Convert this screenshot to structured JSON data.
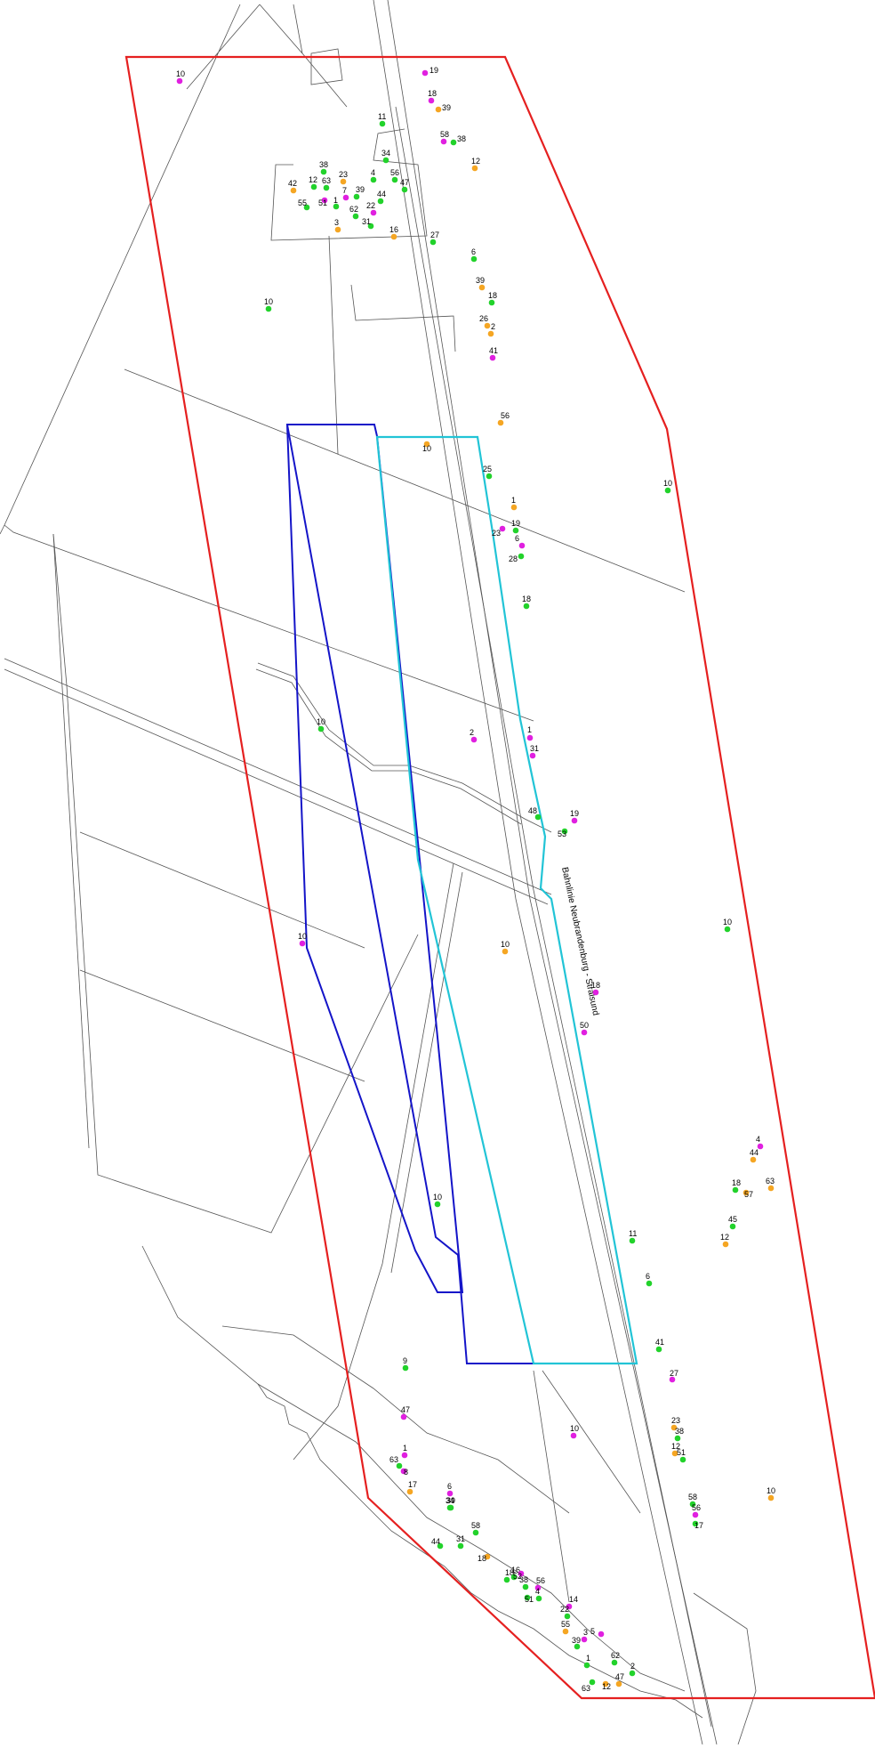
{
  "map": {
    "railway_label": "Bahnlinie Neubrandenburg - Stralsund",
    "colors": {
      "orange": "#f5a623",
      "green": "#22d22b",
      "magenta": "#e020e0",
      "outer_boundary": "#e52020",
      "cyan_area": "#22c4d6",
      "blue_area": "#1414c8",
      "base_lines": "#555555"
    },
    "points": [
      {
        "label": "10",
        "color": "magenta"
      },
      {
        "label": "19",
        "color": "magenta"
      },
      {
        "label": "18",
        "color": "magenta"
      },
      {
        "label": "39",
        "color": "orange"
      },
      {
        "label": "11",
        "color": "green"
      },
      {
        "label": "58",
        "color": "magenta"
      },
      {
        "label": "38",
        "color": "green"
      },
      {
        "label": "34",
        "color": "green"
      },
      {
        "label": "12",
        "color": "orange"
      },
      {
        "label": "38",
        "color": "green"
      },
      {
        "label": "4",
        "color": "green"
      },
      {
        "label": "56",
        "color": "green"
      },
      {
        "label": "42",
        "color": "orange"
      },
      {
        "label": "12",
        "color": "green"
      },
      {
        "label": "63",
        "color": "green"
      },
      {
        "label": "23",
        "color": "orange"
      },
      {
        "label": "47",
        "color": "green"
      },
      {
        "label": "7",
        "color": "magenta"
      },
      {
        "label": "39",
        "color": "green"
      },
      {
        "label": "44",
        "color": "green"
      },
      {
        "label": "55",
        "color": "green"
      },
      {
        "label": "51",
        "color": "magenta"
      },
      {
        "label": "1",
        "color": "green"
      },
      {
        "label": "22",
        "color": "magenta"
      },
      {
        "label": "62",
        "color": "green"
      },
      {
        "label": "31",
        "color": "green"
      },
      {
        "label": "3",
        "color": "orange"
      },
      {
        "label": "16",
        "color": "orange"
      },
      {
        "label": "27",
        "color": "green"
      },
      {
        "label": "6",
        "color": "green"
      },
      {
        "label": "10",
        "color": "green"
      },
      {
        "label": "39",
        "color": "orange"
      },
      {
        "label": "18",
        "color": "green"
      },
      {
        "label": "26",
        "color": "orange"
      },
      {
        "label": "2",
        "color": "orange"
      },
      {
        "label": "41",
        "color": "magenta"
      },
      {
        "label": "56",
        "color": "orange"
      },
      {
        "label": "10",
        "color": "orange"
      },
      {
        "label": "25",
        "color": "green"
      },
      {
        "label": "10",
        "color": "green"
      },
      {
        "label": "1",
        "color": "orange"
      },
      {
        "label": "19",
        "color": "green"
      },
      {
        "label": "23",
        "color": "magenta"
      },
      {
        "label": "6",
        "color": "magenta"
      },
      {
        "label": "28",
        "color": "green"
      },
      {
        "label": "18",
        "color": "green"
      },
      {
        "label": "10",
        "color": "green"
      },
      {
        "label": "2",
        "color": "magenta"
      },
      {
        "label": "1",
        "color": "magenta"
      },
      {
        "label": "31",
        "color": "magenta"
      },
      {
        "label": "48",
        "color": "green"
      },
      {
        "label": "19",
        "color": "magenta"
      },
      {
        "label": "53",
        "color": "green"
      },
      {
        "label": "10",
        "color": "green"
      },
      {
        "label": "10",
        "color": "magenta"
      },
      {
        "label": "10",
        "color": "orange"
      },
      {
        "label": "18",
        "color": "magenta"
      },
      {
        "label": "50",
        "color": "magenta"
      },
      {
        "label": "4",
        "color": "magenta"
      },
      {
        "label": "44",
        "color": "orange"
      },
      {
        "label": "18",
        "color": "green"
      },
      {
        "label": "57",
        "color": "orange"
      },
      {
        "label": "63",
        "color": "orange"
      },
      {
        "label": "45",
        "color": "green"
      },
      {
        "label": "12",
        "color": "orange"
      },
      {
        "label": "10",
        "color": "green"
      },
      {
        "label": "11",
        "color": "green"
      },
      {
        "label": "6",
        "color": "green"
      },
      {
        "label": "41",
        "color": "green"
      },
      {
        "label": "27",
        "color": "magenta"
      },
      {
        "label": "9",
        "color": "green"
      },
      {
        "label": "47",
        "color": "magenta"
      },
      {
        "label": "10",
        "color": "magenta"
      },
      {
        "label": "23",
        "color": "orange"
      },
      {
        "label": "38",
        "color": "green"
      },
      {
        "label": "12",
        "color": "orange"
      },
      {
        "label": "51",
        "color": "green"
      },
      {
        "label": "1",
        "color": "magenta"
      },
      {
        "label": "63",
        "color": "green"
      },
      {
        "label": "8",
        "color": "magenta"
      },
      {
        "label": "17",
        "color": "orange"
      },
      {
        "label": "6",
        "color": "magenta"
      },
      {
        "label": "39",
        "color": "green"
      },
      {
        "label": "58",
        "color": "green"
      },
      {
        "label": "10",
        "color": "orange"
      },
      {
        "label": "56",
        "color": "magenta"
      },
      {
        "label": "17",
        "color": "green"
      },
      {
        "label": "34",
        "color": "green"
      },
      {
        "label": "58",
        "color": "green"
      },
      {
        "label": "44",
        "color": "green"
      },
      {
        "label": "31",
        "color": "green"
      },
      {
        "label": "18",
        "color": "orange"
      },
      {
        "label": "18",
        "color": "green"
      },
      {
        "label": "16",
        "color": "green"
      },
      {
        "label": "52",
        "color": "magenta"
      },
      {
        "label": "38",
        "color": "green"
      },
      {
        "label": "56",
        "color": "magenta"
      },
      {
        "label": "51",
        "color": "green"
      },
      {
        "label": "4",
        "color": "green"
      },
      {
        "label": "14",
        "color": "magenta"
      },
      {
        "label": "22",
        "color": "green"
      },
      {
        "label": "55",
        "color": "orange"
      },
      {
        "label": "3",
        "color": "magenta"
      },
      {
        "label": "5",
        "color": "magenta"
      },
      {
        "label": "39",
        "color": "green"
      },
      {
        "label": "1",
        "color": "green"
      },
      {
        "label": "62",
        "color": "green"
      },
      {
        "label": "63",
        "color": "green"
      },
      {
        "label": "12",
        "color": "orange"
      },
      {
        "label": "47",
        "color": "orange"
      },
      {
        "label": "2",
        "color": "green"
      }
    ]
  }
}
